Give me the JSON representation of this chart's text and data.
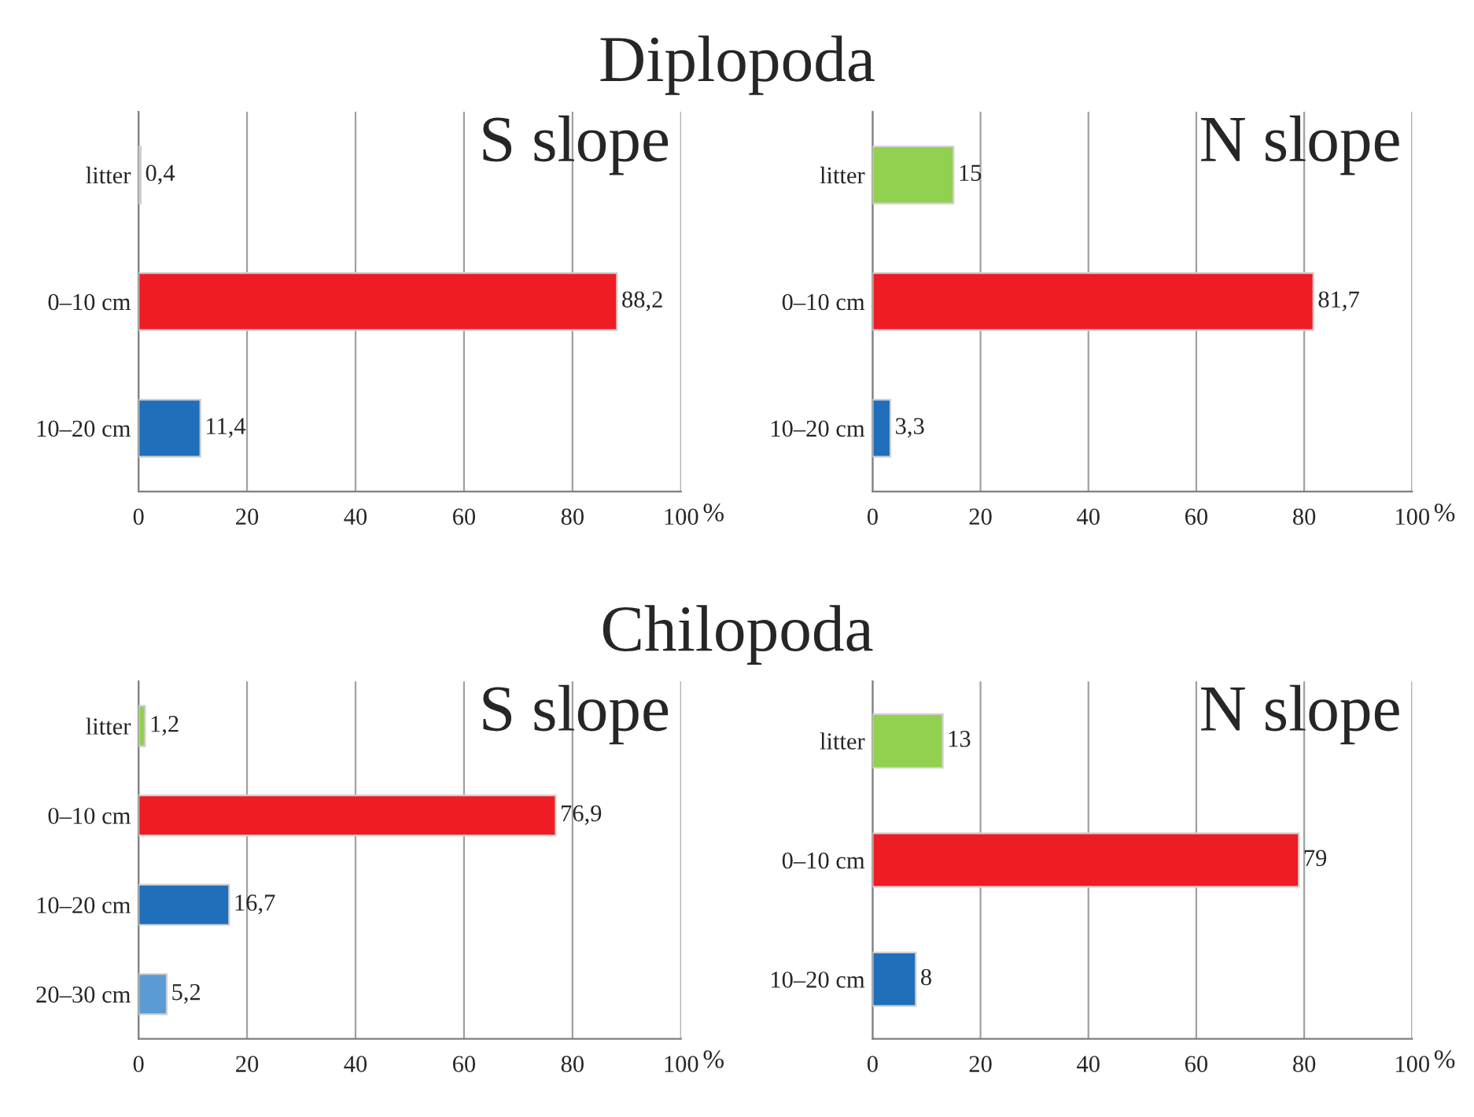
{
  "chart_data": [
    {
      "type": "bar",
      "orientation": "horizontal",
      "title": "S slope",
      "annotations": [
        "Diplopoda"
      ],
      "xlabel": "%",
      "categories": [
        "litter",
        "0–10 cm",
        "10–20 cm"
      ],
      "values": [
        0.4,
        88.2,
        11.4
      ],
      "colors": [
        "#b5bfa8",
        "#ee1c25",
        "#1f6fba"
      ],
      "value_labels": [
        "0,4",
        "88,2",
        "11,4"
      ],
      "xlim": [
        0,
        100
      ],
      "xticks": [
        0,
        20,
        40,
        60,
        80,
        100
      ],
      "grid": "x"
    },
    {
      "type": "bar",
      "orientation": "horizontal",
      "title": "N slope",
      "xlabel": "%",
      "categories": [
        "litter",
        "0–10 cm",
        "10–20 cm"
      ],
      "values": [
        15,
        81.7,
        3.3
      ],
      "colors": [
        "#92d050",
        "#ee1c25",
        "#1f6fba"
      ],
      "value_labels": [
        "15",
        "81,7",
        "3,3"
      ],
      "xlim": [
        0,
        100
      ],
      "xticks": [
        0,
        20,
        40,
        60,
        80,
        100
      ],
      "grid": "x"
    },
    {
      "type": "bar",
      "orientation": "horizontal",
      "title": "S slope",
      "annotations": [
        "Chilopoda"
      ],
      "xlabel": "%",
      "categories": [
        "litter",
        "0–10 cm",
        "10–20 cm",
        "20–30 cm"
      ],
      "values": [
        1.2,
        76.9,
        16.7,
        5.2
      ],
      "colors": [
        "#92d050",
        "#ee1c25",
        "#1f6fba",
        "#5b9bd5"
      ],
      "value_labels": [
        "1,2",
        "76,9",
        "16,7",
        "5,2"
      ],
      "xlim": [
        0,
        100
      ],
      "xticks": [
        0,
        20,
        40,
        60,
        80,
        100
      ],
      "grid": "x"
    },
    {
      "type": "bar",
      "orientation": "horizontal",
      "title": "N slope",
      "xlabel": "%",
      "categories": [
        "litter",
        "0–10 cm",
        "10–20 cm"
      ],
      "values": [
        13,
        79,
        8
      ],
      "colors": [
        "#92d050",
        "#ee1c25",
        "#1f6fba"
      ],
      "value_labels": [
        "13",
        "79",
        "8"
      ],
      "xlim": [
        0,
        100
      ],
      "xticks": [
        0,
        20,
        40,
        60,
        80,
        100
      ],
      "grid": "x"
    }
  ]
}
